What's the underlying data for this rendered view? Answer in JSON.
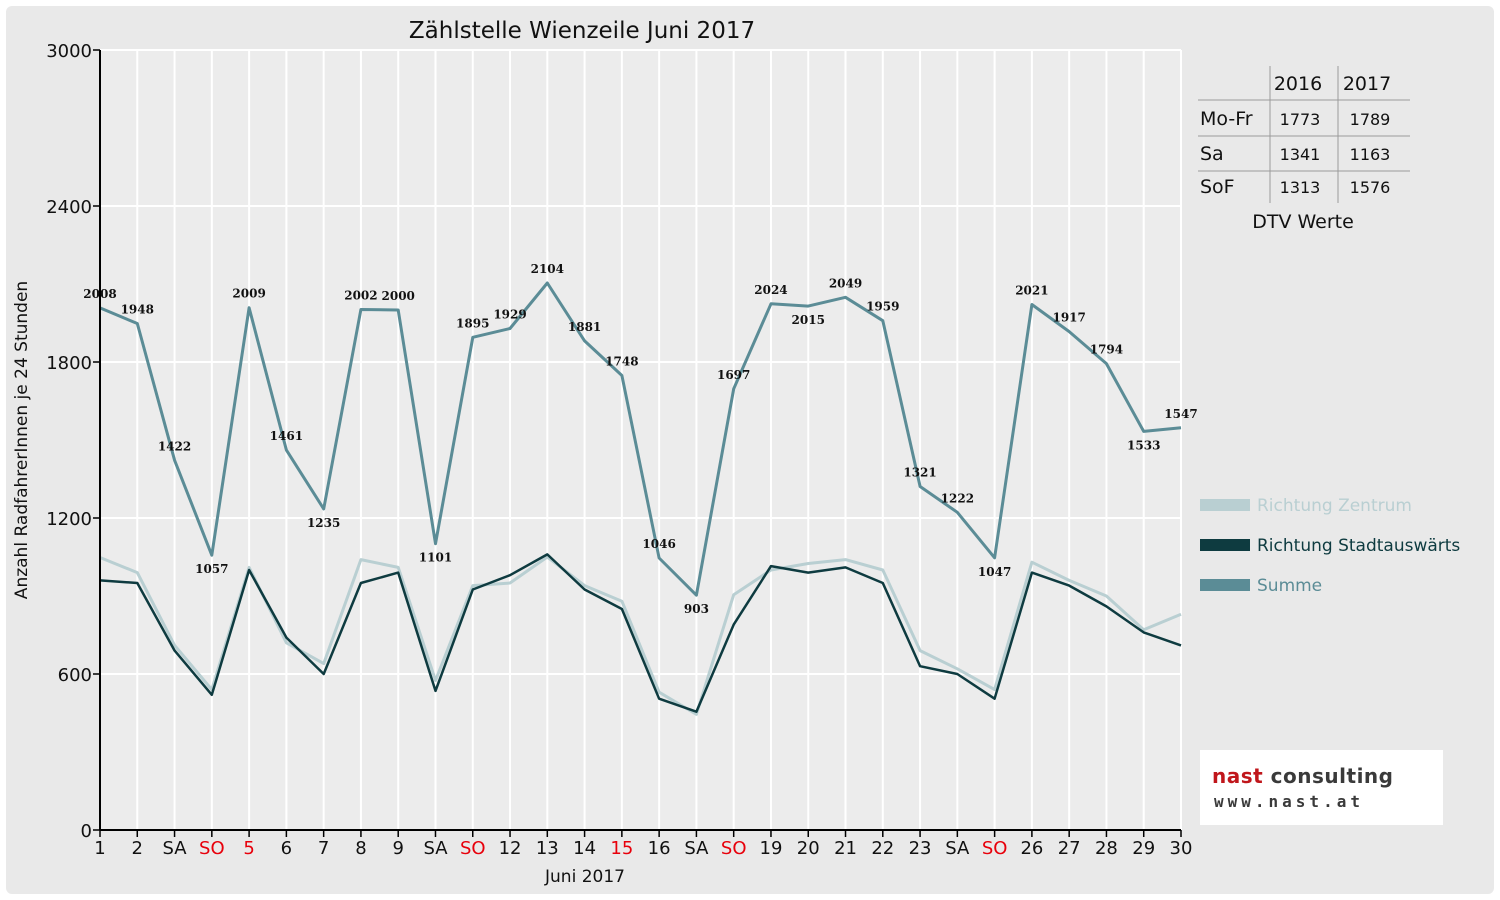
{
  "chart_data": {
    "type": "line",
    "title": "Zählstelle Wienzeile Juni 2017",
    "xlabel": "Juni 2017",
    "ylabel": "Anzahl RadfahrerInnen je 24 Stunden",
    "ylim": [
      0,
      3000
    ],
    "yticks": [
      0,
      600,
      1200,
      1800,
      2400,
      3000
    ],
    "grid": true,
    "legend_position": "right",
    "categories": [
      "1",
      "2",
      "SA",
      "SO",
      "5",
      "6",
      "7",
      "8",
      "9",
      "SA",
      "SO",
      "12",
      "13",
      "14",
      "15",
      "16",
      "SA",
      "SO",
      "19",
      "20",
      "21",
      "22",
      "23",
      "SA",
      "SO",
      "26",
      "27",
      "28",
      "29",
      "30"
    ],
    "holiday_indices": [
      3,
      4,
      10,
      14,
      17,
      24
    ],
    "series": [
      {
        "name": "Richtung Zentrum",
        "color": "#b9cfd2",
        "values": [
          1048,
          990,
          710,
          540,
          1010,
          720,
          640,
          1040,
          1010,
          575,
          940,
          950,
          1050,
          940,
          880,
          530,
          445,
          905,
          1000,
          1025,
          1040,
          1000,
          690,
          620,
          540,
          1030,
          960,
          900,
          770,
          830
        ]
      },
      {
        "name": "Richtung Stadtauswärts",
        "color": "#0e3b40",
        "values": [
          960,
          950,
          690,
          520,
          1000,
          740,
          600,
          950,
          990,
          535,
          925,
          980,
          1060,
          925,
          850,
          505,
          455,
          790,
          1015,
          990,
          1010,
          950,
          630,
          600,
          505,
          990,
          940,
          860,
          760,
          710
        ]
      },
      {
        "name": "Summe",
        "color": "#5b8c96",
        "values": [
          2008,
          1948,
          1422,
          1057,
          2009,
          1461,
          1235,
          2002,
          2000,
          1101,
          1895,
          1929,
          2104,
          1881,
          1748,
          1046,
          903,
          1697,
          2024,
          2015,
          2049,
          1959,
          1321,
          1222,
          1047,
          2021,
          1917,
          1794,
          1533,
          1547
        ]
      }
    ]
  },
  "dtv_table": {
    "headers": [
      "",
      "2016",
      "2017"
    ],
    "rows": [
      {
        "label": "Mo-Fr",
        "v2016": "1773",
        "v2017": "1789"
      },
      {
        "label": "Sa",
        "v2016": "1341",
        "v2017": "1163"
      },
      {
        "label": "SoF",
        "v2016": "1313",
        "v2017": "1576"
      }
    ],
    "caption": "DTV Werte"
  },
  "logo": {
    "name_part1": "nast",
    "name_part2": "consulting",
    "url": "www.nast.at"
  },
  "colors": {
    "frame_bg": "#e9e9e9",
    "axis": "#000000",
    "grid": "#ffffff",
    "holiday_label": "#e8000b",
    "logo_red": "#c0161b"
  }
}
